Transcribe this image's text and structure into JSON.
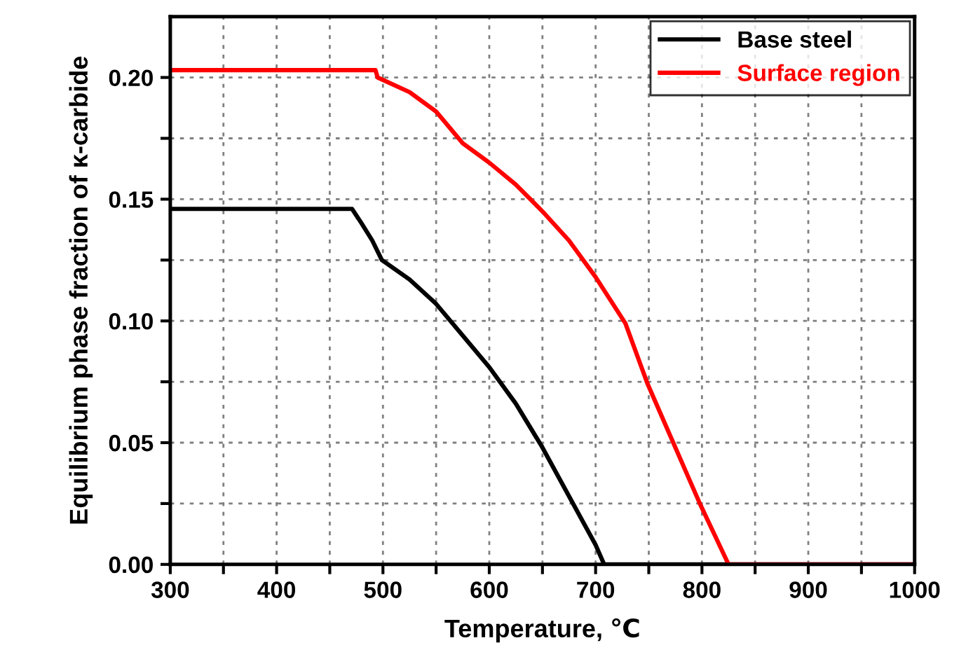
{
  "chart_data": {
    "type": "line",
    "xlabel": "Temperature, ℃",
    "ylabel": "Equilibrium phase fraction of κ-carbide",
    "series": [
      {
        "name": "Base steel",
        "color": "#000000",
        "x": [
          300,
          400,
          471,
          480,
          490,
          499,
          525,
          550,
          575,
          600,
          625,
          650,
          675,
          700,
          708,
          750,
          1000
        ],
        "values": [
          0.146,
          0.146,
          0.146,
          0.14,
          0.133,
          0.125,
          0.117,
          0.107,
          0.094,
          0.081,
          0.066,
          0.048,
          0.028,
          0.008,
          0.0,
          0.0,
          0.0
        ]
      },
      {
        "name": "Surface region",
        "color": "#ff0000",
        "x": [
          300,
          400,
          493,
          495,
          525,
          550,
          575,
          600,
          625,
          650,
          675,
          700,
          728,
          749,
          772,
          798,
          825,
          900,
          1000
        ],
        "values": [
          0.203,
          0.203,
          0.203,
          0.2,
          0.194,
          0.186,
          0.173,
          0.165,
          0.156,
          0.145,
          0.133,
          0.118,
          0.099,
          0.074,
          0.051,
          0.025,
          0.0,
          0.0,
          0.0
        ]
      }
    ],
    "xlim": [
      300,
      1000
    ],
    "ylim": [
      0,
      0.225
    ],
    "xticks": [
      300,
      {
        "value": 350,
        "label": null
      },
      400,
      {
        "value": 450,
        "label": null
      },
      500,
      {
        "value": 550,
        "label": null
      },
      600,
      {
        "value": 650,
        "label": null
      },
      700,
      {
        "value": 750,
        "label": null
      },
      800,
      {
        "value": 850,
        "label": null
      },
      900,
      {
        "value": 950,
        "label": null
      },
      1000
    ],
    "yticks": [
      {
        "value": 0,
        "label": "0.00"
      },
      {
        "value": 0.025,
        "label": null
      },
      {
        "value": 0.05,
        "label": "0.05"
      },
      {
        "value": 0.075,
        "label": null
      },
      {
        "value": 0.1,
        "label": "0.10"
      },
      {
        "value": 0.125,
        "label": null
      },
      {
        "value": 0.15,
        "label": "0.15"
      },
      {
        "value": 0.175,
        "label": null
      },
      {
        "value": 0.2,
        "label": "0.20"
      }
    ],
    "grid": true,
    "legend": "top right",
    "line_style": "solid",
    "marker": "none"
  }
}
